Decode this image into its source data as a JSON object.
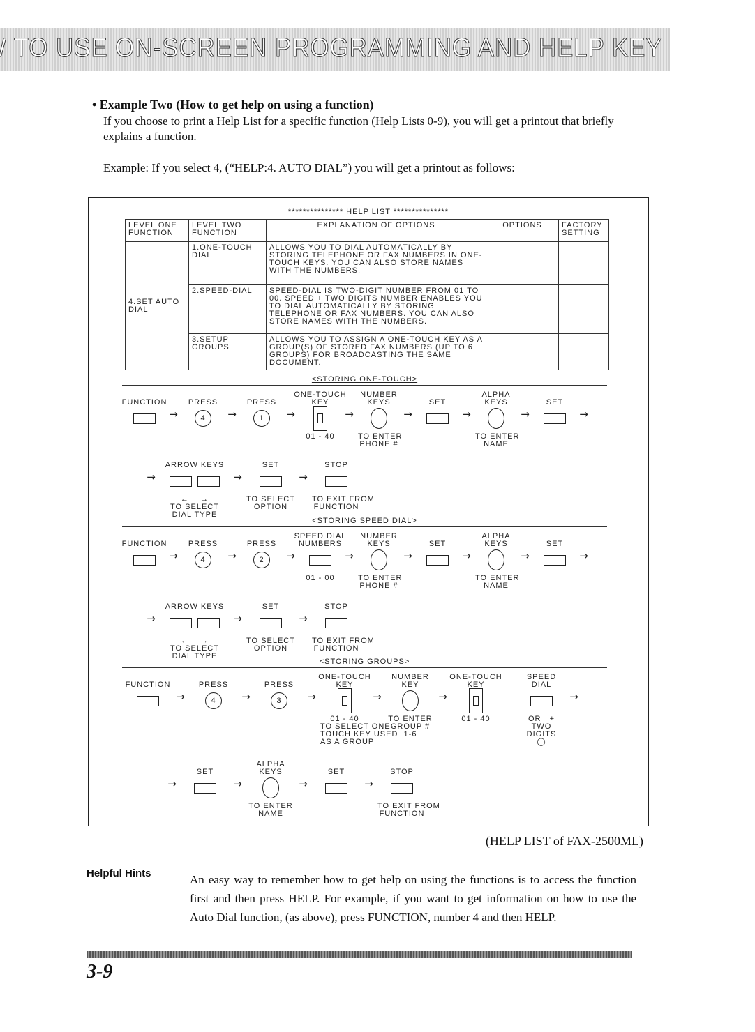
{
  "header": {
    "title": "HOW TO USE ON-SCREEN PROGRAMMING AND HELP KEY"
  },
  "example": {
    "title": "• Example Two (How to get help on using a function)",
    "para1": "If you choose to print a Help List for a specific function (Help Lists 0-9), you will get a printout that briefly explains a function.",
    "para2": "Example: If you select 4, (“HELP:4. AUTO DIAL”) you will get a printout as follows:"
  },
  "printout": {
    "heading": "*************** HELP LIST ***************",
    "columns": [
      "LEVEL ONE FUNCTION",
      "LEVEL TWO FUNCTION",
      "EXPLANATION OF OPTIONS",
      "OPTIONS",
      "FACTORY SETTING"
    ],
    "level_one": "4.SET AUTO DIAL",
    "rows": [
      {
        "level_two": "1.ONE-TOUCH DIAL",
        "explanation": "ALLOWS YOU TO DIAL AUTOMATICALLY BY STORING TELEPHONE OR FAX NUMBERS IN ONE-TOUCH KEYS. YOU CAN ALSO STORE NAMES WITH THE NUMBERS."
      },
      {
        "level_two": "2.SPEED-DIAL",
        "explanation": "SPEED-DIAL IS TWO-DIGIT NUMBER FROM 01 TO 00. SPEED + TWO DIGITS NUMBER ENABLES YOU TO DIAL AUTOMATICALLY BY STORING TELEPHONE OR FAX NUMBERS. YOU CAN ALSO STORE NAMES WITH THE NUMBERS."
      },
      {
        "level_two": "3.SETUP GROUPS",
        "explanation": "ALLOWS YOU TO ASSIGN A ONE-TOUCH KEY AS A GROUP(S) OF STORED FAX NUMBERS (UP TO 6 GROUPS) FOR BROADCASTING THE SAME DOCUMENT."
      }
    ],
    "sections": [
      {
        "title": "<STORING ONE-TOUCH>",
        "row1": [
          {
            "label": "FUNCTION",
            "icon": "rect"
          },
          {
            "label": "PRESS",
            "icon": "circle",
            "digit": "4"
          },
          {
            "label": "PRESS",
            "icon": "circle",
            "digit": "1"
          },
          {
            "label": "ONE-TOUCH\nKEY",
            "icon": "onetouch",
            "caption": "01 - 40"
          },
          {
            "label": "NUMBER\nKEYS",
            "icon": "bigcircle",
            "caption": "TO ENTER\nPHONE #"
          },
          {
            "label": "SET",
            "icon": "rect"
          },
          {
            "label": "ALPHA\nKEYS",
            "icon": "bigcircle",
            "caption": "TO ENTER\nNAME"
          },
          {
            "label": "SET",
            "icon": "rect"
          }
        ],
        "row2": [
          {
            "label": "ARROW KEYS",
            "icon": "rect2",
            "caption": "←    →\nTO SELECT\nDIAL TYPE"
          },
          {
            "label": "SET",
            "icon": "rect",
            "caption": "TO SELECT\nOPTION"
          },
          {
            "label": "STOP",
            "icon": "rect",
            "caption": "TO EXIT FROM\nFUNCTION"
          }
        ]
      },
      {
        "title": "<STORING SPEED DIAL>",
        "row1": [
          {
            "label": "FUNCTION",
            "icon": "rect"
          },
          {
            "label": "PRESS",
            "icon": "circle",
            "digit": "4"
          },
          {
            "label": "PRESS",
            "icon": "circle",
            "digit": "2"
          },
          {
            "label": "SPEED DIAL\nNUMBERS",
            "icon": "rect",
            "caption": "01 - 00"
          },
          {
            "label": "NUMBER\nKEYS",
            "icon": "bigcircle",
            "caption": "TO ENTER\nPHONE #"
          },
          {
            "label": "SET",
            "icon": "rect"
          },
          {
            "label": "ALPHA\nKEYS",
            "icon": "bigcircle",
            "caption": "TO ENTER\nNAME"
          },
          {
            "label": "SET",
            "icon": "rect"
          }
        ],
        "row2": [
          {
            "label": "ARROW KEYS",
            "icon": "rect2",
            "caption": "←    →\nTO SELECT\nDIAL TYPE"
          },
          {
            "label": "SET",
            "icon": "rect",
            "caption": "TO SELECT\nOPTION"
          },
          {
            "label": "STOP",
            "icon": "rect",
            "caption": "TO EXIT FROM\nFUNCTION"
          }
        ]
      },
      {
        "title": "<STORING GROUPS>",
        "row1": [
          {
            "label": "FUNCTION",
            "icon": "rect"
          },
          {
            "label": "PRESS",
            "icon": "circle",
            "digit": "4"
          },
          {
            "label": "PRESS",
            "icon": "circle",
            "digit": "3"
          },
          {
            "label": "ONE-TOUCH\nKEY",
            "icon": "onetouch",
            "caption": "01 - 40\nTO SELECT ONE-\nTOUCH KEY USED\nAS A GROUP"
          },
          {
            "label": "NUMBER\nKEY",
            "icon": "bigcircle",
            "caption": "TO ENTER\nGROUP #\n1-6"
          },
          {
            "label": "ONE-TOUCH\nKEY",
            "icon": "onetouch",
            "caption": "01 - 40",
            "noarrow": true
          },
          {
            "label": "SPEED\nDIAL",
            "icon": "rect",
            "caption": "OR   +\nTWO\nDIGITS\n◯"
          }
        ],
        "row2": [
          {
            "label": "SET",
            "icon": "rect"
          },
          {
            "label": "ALPHA\nKEYS",
            "icon": "bigcircle",
            "caption": "TO ENTER\nNAME"
          },
          {
            "label": "SET",
            "icon": "rect"
          },
          {
            "label": "STOP",
            "icon": "rect",
            "caption": "TO EXIT FROM\nFUNCTION"
          }
        ]
      }
    ]
  },
  "figure_caption": "(HELP LIST of FAX-2500ML)",
  "hints": {
    "heading": "Helpful Hints",
    "text": "An easy way to remember how to get help on using the functions is to access the function first and then press HELP. For example, if you want to get information on how to use the Auto Dial function, (as above), press FUNCTION, number 4 and then HELP."
  },
  "page_number": "3-9"
}
